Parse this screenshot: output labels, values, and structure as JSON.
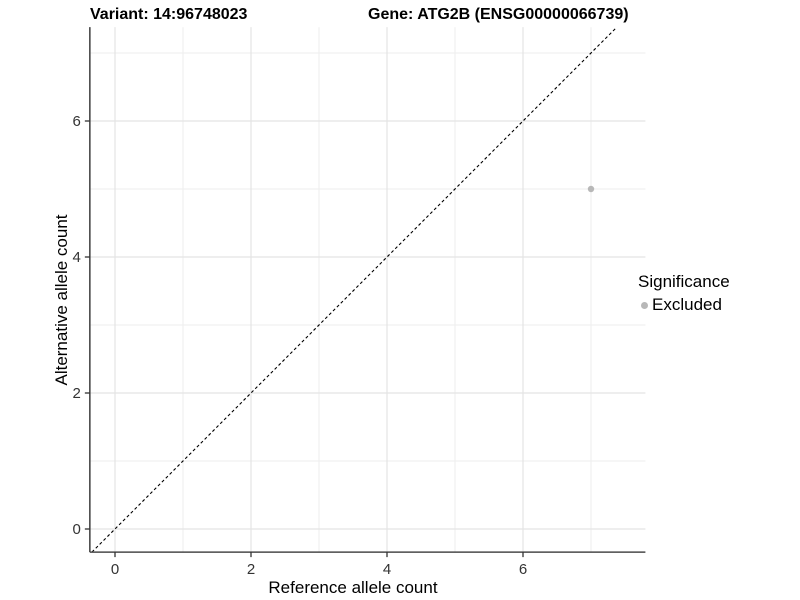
{
  "chart_data": {
    "type": "scatter",
    "titles": {
      "left": "Variant: 14:96748023",
      "right": "Gene: ATG2B (ENSG00000066739)"
    },
    "xlabel": "Reference allele count",
    "ylabel": "Alternative allele count",
    "xticks": [
      0,
      2,
      4,
      6
    ],
    "yticks": [
      0,
      2,
      4,
      6
    ],
    "xticks_minor": [
      1,
      3,
      5,
      7
    ],
    "yticks_minor": [
      1,
      3,
      5,
      7
    ],
    "xlim": [
      -0.37,
      7.8
    ],
    "ylim": [
      -0.34,
      7.38
    ],
    "grid": "major+minor",
    "identity_line": {
      "equation": "y = x",
      "style": "dashed",
      "color": "#000000"
    },
    "series": [
      {
        "name": "Excluded",
        "color": "#b8b8b8",
        "points": [
          {
            "x": 7,
            "y": 5
          }
        ]
      }
    ],
    "legend": {
      "title": "Significance",
      "position": "right",
      "items": [
        {
          "label": "Excluded",
          "color": "#b8b8b8"
        }
      ]
    },
    "style": {
      "background": "#ffffff",
      "grid_major_color": "#e4e4e4",
      "grid_minor_color": "#ededed",
      "axis_line_color": "#4a4a4a",
      "tick_color": "#333333",
      "point_radius": 3.2
    }
  }
}
